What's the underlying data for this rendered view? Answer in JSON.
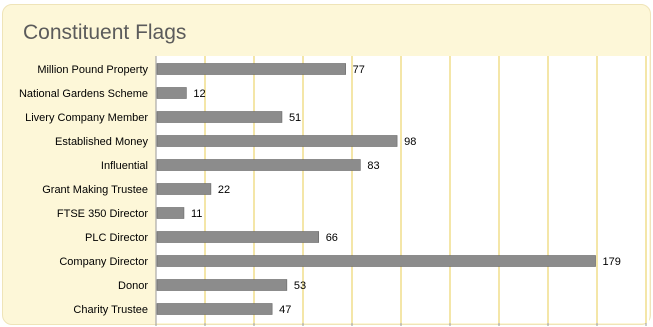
{
  "chart_data": {
    "type": "bar",
    "orientation": "horizontal",
    "title": "Constituent Flags",
    "xlabel": "",
    "ylabel": "",
    "xlim": [
      0,
      200
    ],
    "grid": true,
    "legend": "none",
    "categories": [
      "Million Pound Property",
      "National Gardens Scheme",
      "Livery Company Member",
      "Established Money",
      "Influential",
      "Grant Making Trustee",
      "FTSE 350 Director",
      "PLC Director",
      "Company Director",
      "Donor",
      "Charity Trustee"
    ],
    "values": [
      77,
      12,
      51,
      98,
      83,
      22,
      11,
      66,
      179,
      53,
      47
    ],
    "colors": {
      "bar": "#8c8c8c",
      "bar_edge": "#666666",
      "gridline": "#e8cc52",
      "panel": "#fdf7d8"
    }
  }
}
